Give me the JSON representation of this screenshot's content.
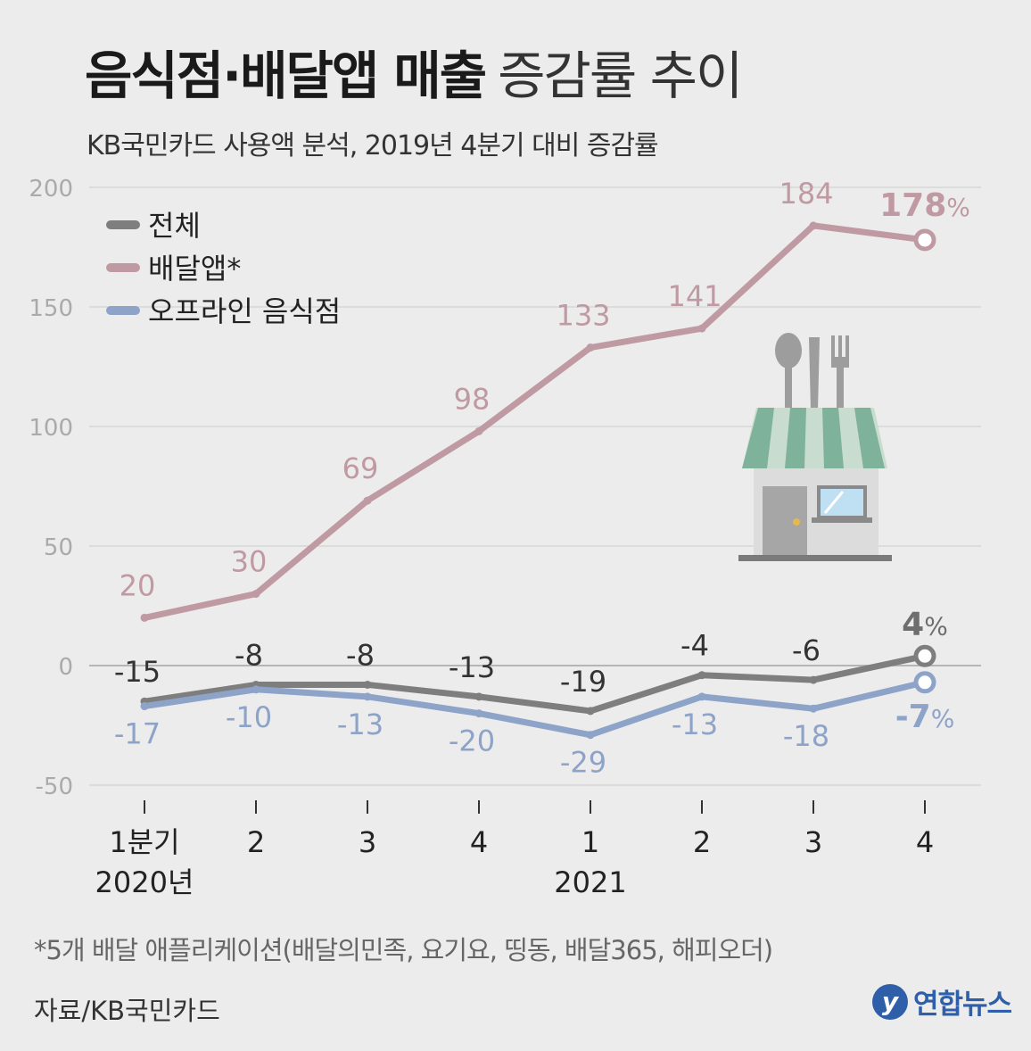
{
  "title": {
    "bold": "음식점·배달앱 매출",
    "light": "증감률 추이"
  },
  "subtitle": "KB국민카드 사용액 분석, 2019년 4분기 대비 증감률",
  "footnote": "*5개 배달 애플리케이션(배달의민족, 요기요, 띵동, 배달365, 해피오더)",
  "source": "자료/KB국민카드",
  "logo": {
    "mark": "y",
    "text": "연합뉴스"
  },
  "colors": {
    "total": "#7e7e7e",
    "delivery": "#c09aa3",
    "offline": "#8ea3c8",
    "grid": "#d6d6d6"
  },
  "chart_data": {
    "type": "line",
    "title": "음식점·배달앱 매출 증감률 추이",
    "ylabel": "%",
    "ylim": [
      -50,
      200
    ],
    "yticks": [
      200,
      150,
      100,
      50,
      0,
      -50
    ],
    "categories": [
      "1분기",
      "2",
      "3",
      "4",
      "1",
      "2",
      "3",
      "4"
    ],
    "year_labels": [
      {
        "index": 0,
        "label": "2020년"
      },
      {
        "index": 4,
        "label": "2021"
      }
    ],
    "series": [
      {
        "key": "delivery",
        "name": "배달앱*",
        "values": [
          20,
          30,
          69,
          98,
          133,
          141,
          184,
          178
        ],
        "last_label": "178",
        "unit": "%"
      },
      {
        "key": "total",
        "name": "전체",
        "values": [
          -15,
          -8,
          -8,
          -13,
          -19,
          -4,
          -6,
          4
        ],
        "last_label": "4",
        "unit": "%"
      },
      {
        "key": "offline",
        "name": "오프라인 음식점",
        "values": [
          -17,
          -10,
          -13,
          -20,
          -29,
          -13,
          -18,
          -7
        ],
        "last_label": "-7",
        "unit": "%"
      }
    ],
    "legend": [
      "전체",
      "배달앱*",
      "오프라인 음식점"
    ],
    "legend_position": "top-left"
  }
}
